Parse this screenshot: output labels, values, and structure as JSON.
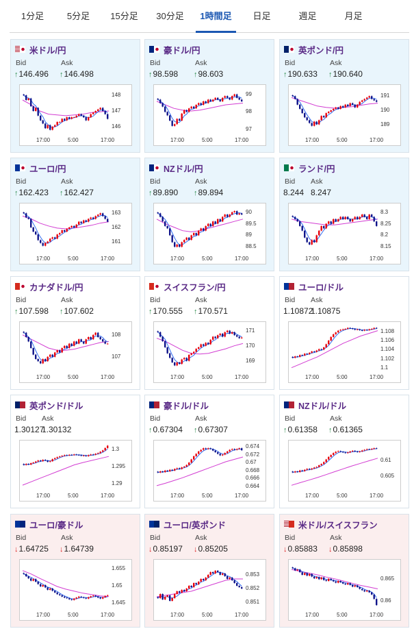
{
  "tabs": [
    "1分足",
    "5分足",
    "15分足",
    "30分足",
    "1時間足",
    "日足",
    "週足",
    "月足"
  ],
  "active_tab": "1時間足",
  "labels": {
    "bid": "Bid",
    "ask": "Ask"
  },
  "colors": {
    "up": "#2a8a4a",
    "down": "#d22",
    "title": "#5a2a86",
    "ma_pink": "#d23cd2",
    "ma_blue": "#1e5ff0",
    "candle_up": "#e8000b",
    "candle_down": "#10148a"
  },
  "pairs": [
    {
      "name": "米ドル/円",
      "flag": "us-jp",
      "bid": "146.496",
      "ask": "146.498",
      "dir": "up",
      "bg": "blue",
      "yticks": [
        "148",
        "147",
        "146"
      ],
      "xticks": [
        "17:00",
        "5:00",
        "17:00"
      ],
      "chart_data": {
        "type": "candlestick",
        "ylim": [
          145.6,
          148.4
        ],
        "ma_long": [
          147.7,
          147.4,
          147.0,
          146.8,
          146.75,
          146.7,
          146.75,
          146.8,
          146.9,
          146.95,
          147.0
        ],
        "closes": [
          148.0,
          147.7,
          147.8,
          147.3,
          147.0,
          147.2,
          146.7,
          146.4,
          146.2,
          145.9,
          146.1,
          145.8,
          146.0,
          146.1,
          146.3,
          146.3,
          146.5,
          146.4,
          146.6,
          146.5,
          146.6,
          146.6,
          146.7,
          146.8,
          146.7,
          146.6,
          146.4,
          146.6,
          146.8,
          146.9,
          147.0,
          147.1,
          147.2,
          147.0,
          146.8,
          146.5
        ]
      }
    },
    {
      "name": "豪ドル/円",
      "flag": "au-jp",
      "bid": "98.598",
      "ask": "98.603",
      "dir": "up",
      "bg": "blue",
      "yticks": [
        "99",
        "98",
        "97"
      ],
      "xticks": [
        "17:00",
        "5:00",
        "17:00"
      ],
      "chart_data": {
        "type": "candlestick",
        "ylim": [
          96.8,
          99.3
        ],
        "ma_long": [
          98.6,
          98.4,
          98.2,
          98.1,
          98.05,
          98.1,
          98.2,
          98.3,
          98.4,
          98.45,
          98.5
        ],
        "closes": [
          98.7,
          98.5,
          98.3,
          98.0,
          97.8,
          97.5,
          97.2,
          97.3,
          97.6,
          97.5,
          97.9,
          98.1,
          98.0,
          98.2,
          98.3,
          98.2,
          98.4,
          98.5,
          98.4,
          98.6,
          98.5,
          98.7,
          98.6,
          98.7,
          98.8,
          98.7,
          98.6,
          98.8,
          98.9,
          98.8,
          98.7,
          98.9,
          99.0,
          98.8,
          98.7,
          98.6
        ]
      }
    },
    {
      "name": "英ポンド/円",
      "flag": "uk-jp",
      "bid": "190.633",
      "ask": "190.640",
      "dir": "up",
      "bg": "blue",
      "yticks": [
        "191",
        "190",
        "189"
      ],
      "xticks": [
        "17:00",
        "5:00",
        "17:00"
      ],
      "chart_data": {
        "type": "candlestick",
        "ylim": [
          188.4,
          191.5
        ],
        "ma_long": [
          190.9,
          190.7,
          190.5,
          190.3,
          190.2,
          190.15,
          190.2,
          190.25,
          190.35,
          190.45,
          190.5
        ],
        "closes": [
          191.0,
          190.8,
          190.4,
          190.1,
          189.8,
          189.5,
          189.3,
          189.1,
          188.9,
          189.2,
          189.0,
          189.3,
          189.6,
          189.5,
          189.8,
          189.9,
          190.0,
          190.1,
          190.2,
          190.1,
          190.3,
          190.2,
          190.4,
          190.3,
          190.5,
          190.4,
          190.2,
          190.4,
          190.6,
          190.7,
          190.8,
          190.9,
          191.0,
          190.8,
          190.7,
          190.6
        ]
      }
    },
    {
      "name": "ユーロ/円",
      "flag": "eu-jp",
      "bid": "162.423",
      "ask": "162.427",
      "dir": "up",
      "bg": "blue",
      "yticks": [
        "163",
        "162",
        "161"
      ],
      "xticks": [
        "17:00",
        "5:00",
        "17:00"
      ],
      "chart_data": {
        "type": "candlestick",
        "ylim": [
          160.3,
          163.4
        ],
        "ma_long": [
          162.8,
          162.6,
          162.3,
          162.1,
          161.95,
          161.9,
          161.95,
          162.05,
          162.15,
          162.3,
          162.4
        ],
        "closes": [
          163.0,
          162.7,
          162.6,
          162.0,
          161.7,
          161.5,
          161.1,
          160.9,
          160.7,
          160.9,
          161.0,
          161.2,
          161.3,
          161.2,
          161.5,
          161.6,
          161.8,
          161.7,
          161.9,
          162.0,
          162.1,
          162.0,
          162.2,
          162.4,
          162.3,
          162.5,
          162.4,
          162.6,
          162.7,
          162.6,
          162.8,
          162.9,
          163.0,
          162.8,
          162.6,
          162.4
        ]
      }
    },
    {
      "name": "NZドル/円",
      "flag": "nz-jp",
      "bid": "89.890",
      "ask": "89.894",
      "dir": "up",
      "bg": "blue",
      "yticks": [
        "90",
        "89.5",
        "89",
        "88.5"
      ],
      "xticks": [
        "17:00",
        "5:00",
        "17:00"
      ],
      "chart_data": {
        "type": "candlestick",
        "ylim": [
          88.3,
          90.2
        ],
        "ma_long": [
          89.7,
          89.5,
          89.35,
          89.2,
          89.15,
          89.2,
          89.3,
          89.4,
          89.5,
          89.6,
          89.7
        ],
        "closes": [
          89.95,
          89.8,
          89.6,
          89.4,
          89.3,
          89.0,
          88.7,
          88.5,
          88.6,
          88.5,
          88.7,
          88.8,
          88.9,
          88.8,
          89.0,
          89.1,
          89.0,
          89.2,
          89.3,
          89.2,
          89.4,
          89.5,
          89.4,
          89.6,
          89.5,
          89.7,
          89.6,
          89.8,
          89.9,
          89.8,
          89.9,
          90.0,
          90.05,
          89.9,
          89.95,
          89.9
        ]
      }
    },
    {
      "name": "ランド/円",
      "flag": "za-jp",
      "bid": "8.244",
      "ask": "8.247",
      "dir": "none",
      "bg": "blue",
      "yticks": [
        "8.3",
        "8.25",
        "8.2",
        "8.15"
      ],
      "xticks": [
        "17:00",
        "5:00",
        "17:00"
      ],
      "chart_data": {
        "type": "candlestick",
        "ylim": [
          8.13,
          8.32
        ],
        "ma_long": [
          8.27,
          8.26,
          8.255,
          8.25,
          8.245,
          8.245,
          8.25,
          8.255,
          8.26,
          8.265,
          8.27
        ],
        "closes": [
          8.28,
          8.27,
          8.26,
          8.24,
          8.22,
          8.19,
          8.17,
          8.16,
          8.18,
          8.17,
          8.2,
          8.22,
          8.24,
          8.23,
          8.25,
          8.26,
          8.25,
          8.27,
          8.26,
          8.27,
          8.28,
          8.27,
          8.28,
          8.27,
          8.26,
          8.27,
          8.28,
          8.27,
          8.28,
          8.29,
          8.28,
          8.27,
          8.29,
          8.28,
          8.26,
          8.24
        ]
      }
    },
    {
      "name": "カナダドル/円",
      "flag": "ca-jp",
      "bid": "107.598",
      "ask": "107.602",
      "dir": "up",
      "bg": "pale",
      "yticks": [
        "108",
        "107"
      ],
      "xticks": [
        "17:00",
        "5:00",
        "17:00"
      ],
      "chart_data": {
        "type": "candlestick",
        "ylim": [
          106.4,
          108.4
        ],
        "ma_long": [
          108.0,
          107.8,
          107.6,
          107.4,
          107.3,
          107.3,
          107.35,
          107.45,
          107.55,
          107.65,
          107.7
        ],
        "closes": [
          108.1,
          107.9,
          107.7,
          107.4,
          107.1,
          106.9,
          106.8,
          106.7,
          106.9,
          106.8,
          107.0,
          107.1,
          107.0,
          107.2,
          107.3,
          107.2,
          107.4,
          107.5,
          107.4,
          107.6,
          107.5,
          107.7,
          107.6,
          107.8,
          107.7,
          107.6,
          107.8,
          107.9,
          107.8,
          108.0,
          108.1,
          107.9,
          107.8,
          107.7,
          107.6,
          107.6
        ]
      }
    },
    {
      "name": "スイスフラン/円",
      "flag": "ch-jp",
      "bid": "170.555",
      "ask": "170.571",
      "dir": "up",
      "bg": "pale",
      "yticks": [
        "171",
        "170",
        "169"
      ],
      "xticks": [
        "17:00",
        "5:00",
        "17:00"
      ],
      "chart_data": {
        "type": "candlestick",
        "ylim": [
          168.4,
          171.3
        ],
        "ma_long": [
          170.5,
          170.3,
          170.0,
          169.7,
          169.5,
          169.45,
          169.5,
          169.65,
          169.8,
          170.0,
          170.15
        ],
        "closes": [
          170.9,
          170.6,
          170.3,
          169.9,
          169.5,
          169.2,
          168.9,
          168.7,
          168.9,
          168.8,
          169.1,
          169.2,
          169.0,
          169.4,
          169.5,
          169.6,
          169.8,
          169.9,
          170.1,
          170.0,
          170.2,
          170.1,
          170.4,
          170.6,
          170.5,
          170.7,
          170.8,
          170.6,
          170.9,
          171.0,
          170.8,
          170.9,
          170.7,
          170.6,
          170.5,
          170.55
        ]
      }
    },
    {
      "name": "ユーロ/ドル",
      "flag": "eu-us",
      "bid": "1.10872",
      "ask": "1.10875",
      "dir": "none",
      "bg": "white",
      "yticks": [
        "1.108",
        "1.106",
        "1.104",
        "1.102",
        "1.1"
      ],
      "xticks": [
        "17:00",
        "5:00",
        "17:00"
      ],
      "chart_data": {
        "type": "candlestick",
        "ylim": [
          1.0995,
          1.1092
        ],
        "ma_long": [
          1.1,
          1.1008,
          1.1016,
          1.1024,
          1.1034,
          1.1044,
          1.1054,
          1.1062,
          1.107,
          1.1076,
          1.1082
        ],
        "closes": [
          1.1022,
          1.1025,
          1.1024,
          1.1028,
          1.1027,
          1.1031,
          1.103,
          1.1033,
          1.1036,
          1.1035,
          1.1038,
          1.1041,
          1.104,
          1.1045,
          1.1052,
          1.106,
          1.1068,
          1.1074,
          1.1078,
          1.1082,
          1.1084,
          1.1085,
          1.1086,
          1.1088,
          1.1087,
          1.1086,
          1.1084,
          1.1085,
          1.1083,
          1.1082,
          1.1084,
          1.1083,
          1.1085,
          1.1086,
          1.1088,
          1.1087
        ]
      }
    },
    {
      "name": "英ポンド/ドル",
      "flag": "uk-us",
      "bid": "1.30127",
      "ask": "1.30132",
      "dir": "none",
      "bg": "white",
      "yticks": [
        "1.3",
        "1.295",
        "1.29"
      ],
      "xticks": [
        "17:00",
        "5:00",
        "17:00"
      ],
      "chart_data": {
        "type": "candlestick",
        "ylim": [
          1.2885,
          1.3015
        ],
        "ma_long": [
          1.2895,
          1.2905,
          1.2915,
          1.2925,
          1.2935,
          1.2945,
          1.2955,
          1.2962,
          1.2968,
          1.2974,
          1.298
        ],
        "closes": [
          1.2955,
          1.2958,
          1.2956,
          1.296,
          1.2962,
          1.2965,
          1.2968,
          1.2966,
          1.297,
          1.2968,
          1.2964,
          1.2966,
          1.2972,
          1.2975,
          1.2978,
          1.298,
          1.2982,
          1.2984,
          1.2983,
          1.2985,
          1.2984,
          1.2986,
          1.2985,
          1.2984,
          1.2982,
          1.2983,
          1.2981,
          1.2984,
          1.2986,
          1.2985,
          1.2988,
          1.299,
          1.2994,
          1.2998,
          1.3005,
          1.3012
        ]
      }
    },
    {
      "name": "豪ドル/ドル",
      "flag": "au-us",
      "bid": "0.67304",
      "ask": "0.67307",
      "dir": "up",
      "bg": "white",
      "yticks": [
        "0.674",
        "0.672",
        "0.67",
        "0.668",
        "0.666",
        "0.664"
      ],
      "xticks": [
        "17:00",
        "5:00",
        "17:00"
      ],
      "chart_data": {
        "type": "candlestick",
        "ylim": [
          0.6635,
          0.6745
        ],
        "ma_long": [
          0.6642,
          0.6648,
          0.6655,
          0.6662,
          0.667,
          0.6678,
          0.6686,
          0.6694,
          0.6702,
          0.6708,
          0.6714
        ],
        "closes": [
          0.6675,
          0.6678,
          0.6676,
          0.668,
          0.6678,
          0.6682,
          0.668,
          0.6684,
          0.6686,
          0.6684,
          0.6688,
          0.669,
          0.6694,
          0.67,
          0.6708,
          0.6716,
          0.6722,
          0.6728,
          0.6732,
          0.6736,
          0.6734,
          0.6736,
          0.6734,
          0.673,
          0.6726,
          0.6722,
          0.6718,
          0.672,
          0.6724,
          0.6728,
          0.6732,
          0.6734,
          0.6732,
          0.6734,
          0.6736,
          0.6731
        ]
      }
    },
    {
      "name": "NZドル/ドル",
      "flag": "nz-us",
      "bid": "0.61358",
      "ask": "0.61365",
      "dir": "up",
      "bg": "white",
      "yticks": [
        "0.61",
        "0.605"
      ],
      "xticks": [
        "17:00",
        "5:00",
        "17:00"
      ],
      "chart_data": {
        "type": "candlestick",
        "ylim": [
          0.6012,
          0.6148
        ],
        "ma_long": [
          0.6022,
          0.603,
          0.6038,
          0.6046,
          0.6055,
          0.6064,
          0.6073,
          0.6082,
          0.609,
          0.6098,
          0.6106
        ],
        "closes": [
          0.6062,
          0.6065,
          0.6063,
          0.6068,
          0.6066,
          0.607,
          0.6073,
          0.6071,
          0.6074,
          0.6077,
          0.6079,
          0.6084,
          0.6088,
          0.6094,
          0.6102,
          0.611,
          0.6116,
          0.6122,
          0.6126,
          0.6128,
          0.6126,
          0.6124,
          0.6122,
          0.6124,
          0.6127,
          0.6129,
          0.6127,
          0.6125,
          0.6127,
          0.613,
          0.6132,
          0.6134,
          0.6133,
          0.6135,
          0.6137,
          0.6136
        ]
      }
    },
    {
      "name": "ユーロ/豪ドル",
      "flag": "eu-au",
      "bid": "1.64725",
      "ask": "1.64739",
      "dir": "down",
      "bg": "pink",
      "yticks": [
        "1.655",
        "1.65",
        "1.645"
      ],
      "xticks": [
        "17:00",
        "5:00",
        "17:00"
      ],
      "chart_data": {
        "type": "candlestick",
        "ylim": [
          1.6435,
          1.6565
        ],
        "ma_long": [
          1.6545,
          1.6535,
          1.6522,
          1.651,
          1.6498,
          1.649,
          1.6484,
          1.6478,
          1.6474,
          1.647,
          1.6468
        ],
        "closes": [
          1.6535,
          1.6528,
          1.6522,
          1.6515,
          1.652,
          1.6512,
          1.6505,
          1.6498,
          1.6502,
          1.6495,
          1.6488,
          1.6492,
          1.6485,
          1.648,
          1.6475,
          1.6472,
          1.6468,
          1.6465,
          1.6463,
          1.646,
          1.6458,
          1.6462,
          1.6465,
          1.6468,
          1.6466,
          1.6464,
          1.6462,
          1.6466,
          1.6469,
          1.6471,
          1.6468,
          1.6465,
          1.6462,
          1.6466,
          1.647,
          1.6472
        ]
      }
    },
    {
      "name": "ユーロ/英ポンド",
      "flag": "eu-uk",
      "bid": "0.85197",
      "ask": "0.85205",
      "dir": "down",
      "bg": "pink",
      "yticks": [
        "0.853",
        "0.852",
        "0.851"
      ],
      "xticks": [
        "17:00",
        "5:00",
        "17:00"
      ],
      "chart_data": {
        "type": "candlestick",
        "ylim": [
          0.8506,
          0.8538
        ],
        "ma_long": [
          0.8514,
          0.8515,
          0.8516,
          0.8517,
          0.8518,
          0.852,
          0.8522,
          0.8524,
          0.8526,
          0.8527,
          0.8527
        ],
        "closes": [
          0.8513,
          0.8516,
          0.8512,
          0.8514,
          0.8515,
          0.8511,
          0.8513,
          0.8516,
          0.8518,
          0.8517,
          0.8519,
          0.8518,
          0.852,
          0.8522,
          0.8521,
          0.8524,
          0.8523,
          0.8525,
          0.8527,
          0.8526,
          0.8528,
          0.853,
          0.8532,
          0.8531,
          0.8533,
          0.8532,
          0.853,
          0.8531,
          0.8529,
          0.8527,
          0.8528,
          0.8526,
          0.8524,
          0.8522,
          0.8521,
          0.852
        ]
      }
    },
    {
      "name": "米ドル/スイスフラン",
      "flag": "us-ch",
      "bid": "0.85883",
      "ask": "0.85898",
      "dir": "down",
      "bg": "pink",
      "yticks": [
        "0.865",
        "0.86"
      ],
      "xticks": [
        "17:00",
        "5:00",
        "17:00"
      ],
      "chart_data": {
        "type": "candlestick",
        "ylim": [
          0.8585,
          0.8685
        ],
        "ma_long": [
          0.8672,
          0.8668,
          0.8664,
          0.866,
          0.8655,
          0.8651,
          0.8646,
          0.8641,
          0.8636,
          0.8632,
          0.8628
        ],
        "closes": [
          0.8675,
          0.867,
          0.8672,
          0.8666,
          0.866,
          0.8664,
          0.8658,
          0.8662,
          0.8656,
          0.8652,
          0.8655,
          0.865,
          0.8654,
          0.8648,
          0.8646,
          0.8651,
          0.8648,
          0.8645,
          0.8642,
          0.8646,
          0.8643,
          0.864,
          0.8638,
          0.8641,
          0.8637,
          0.8633,
          0.8636,
          0.8632,
          0.8628,
          0.8625,
          0.8622,
          0.8624,
          0.862,
          0.8615,
          0.8605,
          0.8591
        ]
      }
    }
  ]
}
